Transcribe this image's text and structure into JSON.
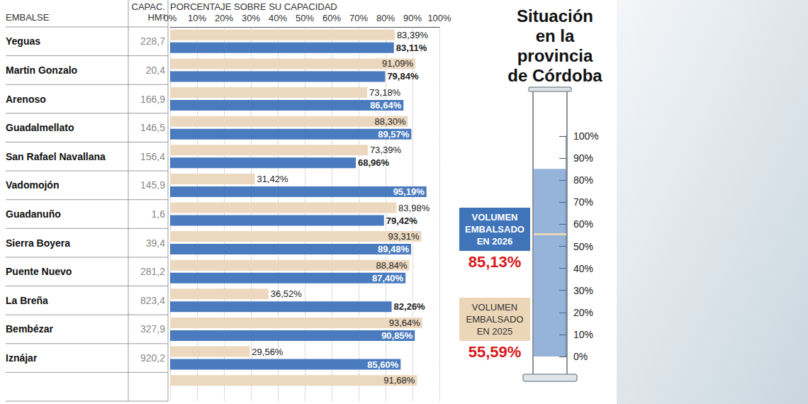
{
  "chart_data": [
    {
      "type": "bar",
      "orientation": "horizontal",
      "xlabel": "PORCENTAJE SOBRE SU CAPACIDAD",
      "ylabel": "EMBALSE",
      "categories": [
        "Yeguas",
        "Martín Gonzalo",
        "Arenoso",
        "Guadalmellato",
        "San Rafael Navallana",
        "Vadomojón",
        "Guadanuño",
        "Sierra Boyera",
        "Puente Nuevo",
        "La Breña",
        "Bembézar",
        "Iznájar",
        null
      ],
      "capacity": {
        "title": "CAPAC. HM³",
        "labels": [
          "228,7",
          "20,4",
          "166,9",
          "146,5",
          "156,4",
          "145,9",
          "1,6",
          "39,4",
          "281,2",
          "823,4",
          "327,9",
          "920,2",
          null
        ]
      },
      "series": [
        {
          "color": "#ecd8bf",
          "values": [
            83.39,
            91.09,
            73.18,
            88.3,
            73.39,
            31.42,
            83.98,
            93.31,
            88.84,
            36.52,
            93.64,
            29.56,
            91.68
          ],
          "value_labels": [
            "83,39%",
            "91,09%",
            "73,18%",
            "88,30%",
            "73,39%",
            "31,42%",
            "83,98%",
            "93,31%",
            "88,84%",
            "36,52%",
            "93,64%",
            "29,56%",
            "91,68%"
          ]
        },
        {
          "color": "#4a7bbf",
          "values": [
            83.11,
            79.84,
            86.64,
            89.57,
            68.96,
            95.19,
            79.42,
            89.48,
            87.4,
            82.26,
            90.85,
            85.6,
            null
          ],
          "value_labels": [
            "83,11%",
            "79,84%",
            "86,64%",
            "89,57%",
            "68,96%",
            "95,19%",
            "79,42%",
            "89,48%",
            "87,40%",
            "82,26%",
            "90,85%",
            "85,60%",
            null
          ]
        }
      ],
      "xlim": [
        0,
        100
      ],
      "xticks": [
        {
          "value": 0,
          "label": "0%"
        },
        {
          "value": 10,
          "label": "10%"
        },
        {
          "value": 20,
          "label": "20%"
        },
        {
          "value": 30,
          "label": "30%"
        },
        {
          "value": 40,
          "label": "40%"
        },
        {
          "value": 50,
          "label": "50%"
        },
        {
          "value": 60,
          "label": "60%"
        },
        {
          "value": 70,
          "label": "70%"
        },
        {
          "value": 80,
          "label": "80%"
        },
        {
          "value": 90,
          "label": "90%"
        },
        {
          "value": 100,
          "label": "100%"
        }
      ],
      "grid": true,
      "data_labels": true
    },
    {
      "type": "bar",
      "title": "Situación en la provincia de Córdoba",
      "series": [
        {
          "name": "VOLUMEN EMBALSADO EN 2026",
          "color": "#3f74b9",
          "values": [
            85.13
          ],
          "value_labels": [
            "85,13%"
          ]
        },
        {
          "name": "VOLUMEN EMBALSADO EN 2025",
          "color": "#ecd6b8",
          "values": [
            55.59
          ],
          "value_labels": [
            "55,59%"
          ]
        }
      ],
      "ylim": [
        0,
        100
      ],
      "yticks": [
        {
          "value": 0,
          "label": "0%"
        },
        {
          "value": 10,
          "label": "10%"
        },
        {
          "value": 20,
          "label": "20%"
        },
        {
          "value": 30,
          "label": "30%"
        },
        {
          "value": 40,
          "label": "40%"
        },
        {
          "value": 50,
          "label": "50%"
        },
        {
          "value": 60,
          "label": "60%"
        },
        {
          "value": 70,
          "label": "70%"
        },
        {
          "value": 80,
          "label": "80%"
        },
        {
          "value": 90,
          "label": "90%"
        },
        {
          "value": 100,
          "label": "100%"
        }
      ],
      "tick_labels": "y"
    }
  ]
}
